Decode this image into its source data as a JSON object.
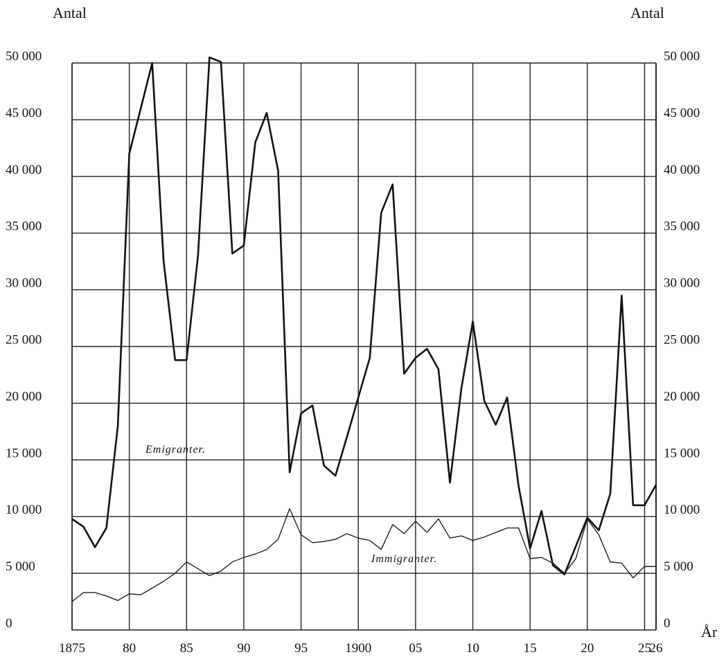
{
  "chart_data": {
    "type": "line",
    "y_axis_label_left": "Antal",
    "y_axis_label_right": "Antal",
    "x_axis_label": "År",
    "ylim": [
      0,
      50000
    ],
    "xlim": [
      1875,
      1926
    ],
    "grid": true,
    "y_ticks": [
      0,
      5000,
      10000,
      15000,
      20000,
      25000,
      30000,
      35000,
      40000,
      45000,
      50000
    ],
    "y_tick_labels_left": [
      "0",
      "5 000",
      "10 000",
      "15 000",
      "20 000",
      "25 000",
      "30 000",
      "35 000",
      "40 000",
      "45 000",
      "50 000"
    ],
    "y_tick_labels_right": [
      "0",
      "5 000",
      "10 000",
      "15 000",
      "20 000",
      "25 000",
      "30 000",
      "35 000",
      "40 000",
      "45 000",
      "50 000"
    ],
    "x_ticks": [
      1875,
      1880,
      1885,
      1890,
      1895,
      1900,
      1905,
      1910,
      1915,
      1920,
      1925,
      1926
    ],
    "x_tick_labels": [
      "1875",
      "80",
      "85",
      "90",
      "95",
      "1900",
      "05",
      "10",
      "15",
      "20",
      "25",
      "26"
    ],
    "series": [
      {
        "name": "Emigranter.",
        "x": [
          1875,
          1876,
          1877,
          1878,
          1879,
          1880,
          1881,
          1882,
          1883,
          1884,
          1885,
          1886,
          1887,
          1888,
          1889,
          1890,
          1891,
          1892,
          1893,
          1894,
          1895,
          1896,
          1897,
          1898,
          1899,
          1900,
          1901,
          1902,
          1903,
          1904,
          1905,
          1906,
          1907,
          1908,
          1909,
          1910,
          1911,
          1912,
          1913,
          1914,
          1915,
          1916,
          1917,
          1918,
          1919,
          1920,
          1921,
          1922,
          1923,
          1924,
          1925,
          1926
        ],
        "values": [
          9800,
          9100,
          7300,
          9000,
          18000,
          42000,
          46000,
          50000,
          32500,
          23800,
          23800,
          33000,
          50500,
          50100,
          33200,
          33900,
          43000,
          45600,
          40500,
          13900,
          19100,
          19800,
          14500,
          13600,
          17000,
          20500,
          24000,
          36800,
          39300,
          22600,
          24000,
          24800,
          23000,
          13000,
          21300,
          27200,
          20200,
          18100,
          20500,
          12700,
          7200,
          10500,
          5700,
          4900,
          7400,
          9900,
          8800,
          12000,
          29500,
          11000,
          11000,
          12800
        ]
      },
      {
        "name": "Immigranter.",
        "x": [
          1875,
          1876,
          1877,
          1878,
          1879,
          1880,
          1881,
          1882,
          1883,
          1884,
          1885,
          1886,
          1887,
          1888,
          1889,
          1890,
          1891,
          1892,
          1893,
          1894,
          1895,
          1896,
          1897,
          1898,
          1899,
          1900,
          1901,
          1902,
          1903,
          1904,
          1905,
          1906,
          1907,
          1908,
          1909,
          1910,
          1911,
          1912,
          1913,
          1914,
          1915,
          1916,
          1917,
          1918,
          1919,
          1920,
          1921,
          1922,
          1923,
          1924,
          1925,
          1926
        ],
        "values": [
          2500,
          3300,
          3300,
          3000,
          2600,
          3200,
          3100,
          3700,
          4300,
          5000,
          6000,
          5400,
          4800,
          5200,
          6000,
          6400,
          6700,
          7100,
          8000,
          10700,
          8400,
          7700,
          7800,
          8000,
          8500,
          8100,
          7900,
          7100,
          9300,
          8500,
          9600,
          8600,
          9800,
          8100,
          8300,
          7900,
          8200,
          8600,
          9000,
          9000,
          6300,
          6400,
          5900,
          5000,
          6300,
          9800,
          8400,
          6000,
          5900,
          4600,
          5600,
          5600
        ]
      }
    ]
  }
}
